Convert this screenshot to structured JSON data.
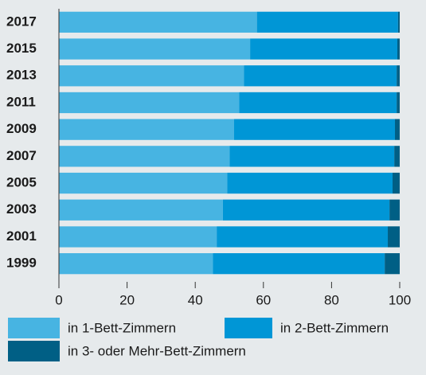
{
  "chart_data": {
    "type": "stacked-barh",
    "categories": [
      "2017",
      "2015",
      "2013",
      "2011",
      "2009",
      "2007",
      "2005",
      "2003",
      "2001",
      "1999"
    ],
    "series": [
      {
        "name": "in 1-Bett-Zimmern",
        "color": "#47b4e2",
        "values": [
          58.1,
          56.1,
          54.3,
          52.9,
          51.4,
          50.1,
          49.4,
          48.1,
          46.3,
          45.2
        ]
      },
      {
        "name": "in 2-Bett-Zimmern",
        "color": "#0096d6",
        "values": [
          41.4,
          43.2,
          44.8,
          46.2,
          47.2,
          48.3,
          48.5,
          48.9,
          50.2,
          50.4
        ]
      },
      {
        "name": "in 3- oder Mehr-Bett-Zimmern",
        "color": "#005f85",
        "values": [
          0.5,
          0.7,
          0.9,
          0.9,
          1.4,
          1.6,
          2.1,
          3.0,
          3.5,
          4.4
        ]
      }
    ],
    "xlim": [
      0,
      100
    ],
    "xticks": [
      0,
      20,
      40,
      60,
      80,
      100
    ]
  }
}
